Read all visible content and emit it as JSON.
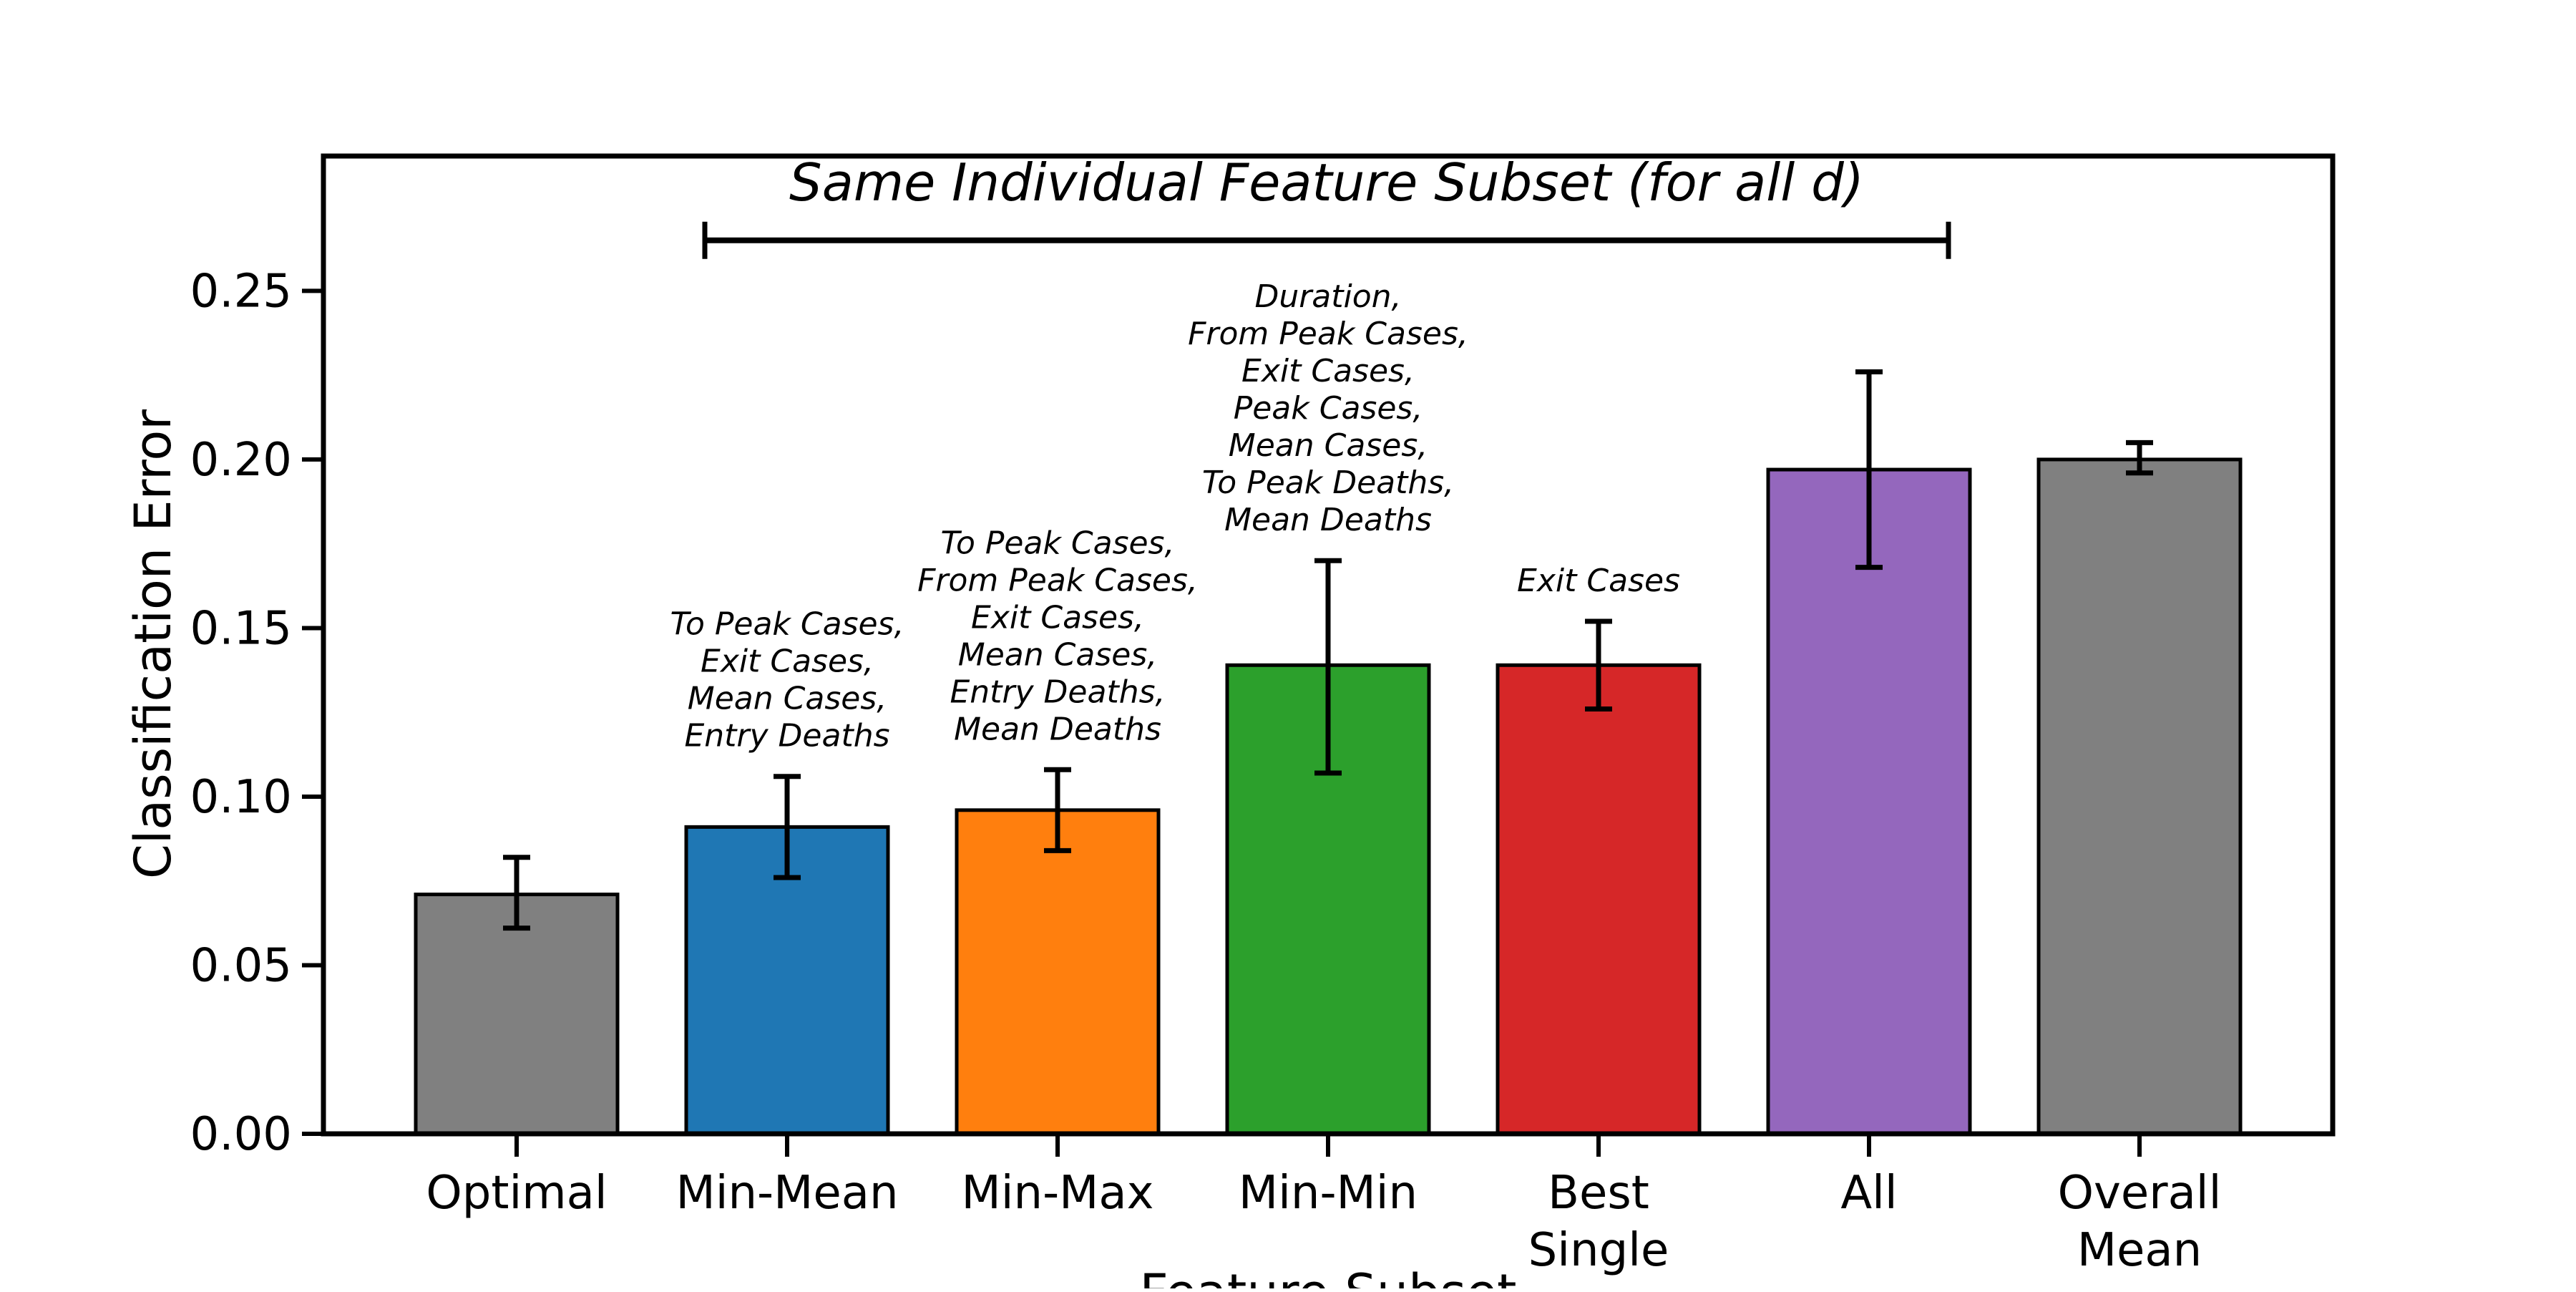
{
  "chart_data": {
    "type": "bar",
    "xlabel": "Feature Subset",
    "ylabel": "Classification Error",
    "ylim": [
      0,
      0.29
    ],
    "yticks": [
      "0.00",
      "0.05",
      "0.10",
      "0.15",
      "0.20",
      "0.25"
    ],
    "ytick_values": [
      0,
      0.05,
      0.1,
      0.15,
      0.2,
      0.25
    ],
    "grid": false,
    "categories": [
      [
        "Optimal"
      ],
      [
        "Min-Mean"
      ],
      [
        "Min-Max"
      ],
      [
        "Min-Min"
      ],
      [
        "Best",
        "Single"
      ],
      [
        "All"
      ],
      [
        "Overall",
        "Mean"
      ]
    ],
    "values": [
      0.071,
      0.091,
      0.096,
      0.139,
      0.139,
      0.197,
      0.2
    ],
    "error_low": [
      0.061,
      0.076,
      0.084,
      0.107,
      0.126,
      0.168,
      0.196
    ],
    "error_high": [
      0.082,
      0.106,
      0.108,
      0.17,
      0.152,
      0.226,
      0.205
    ],
    "colors": [
      "#808080",
      "#1f77b4",
      "#ff7f0e",
      "#2ca02c",
      "#d62728",
      "#9467bd",
      "#808080"
    ],
    "annotations": [
      [],
      [
        "To Peak Cases,",
        "Exit Cases,",
        "Mean Cases,",
        "Entry Deaths"
      ],
      [
        "To Peak Cases,",
        "From Peak Cases,",
        "Exit Cases,",
        "Mean Cases,",
        "Entry Deaths,",
        "Mean Deaths"
      ],
      [
        "Duration,",
        "From Peak Cases,",
        "Exit Cases,",
        "Peak Cases,",
        "Mean Cases,",
        "To Peak Deaths,",
        "Mean Deaths"
      ],
      [
        "Exit Cases"
      ],
      [],
      []
    ],
    "bracket": {
      "label": "Same Individual Feature Subset (for all d)",
      "from_category": 1,
      "to_category": 5,
      "y": 0.265
    }
  }
}
